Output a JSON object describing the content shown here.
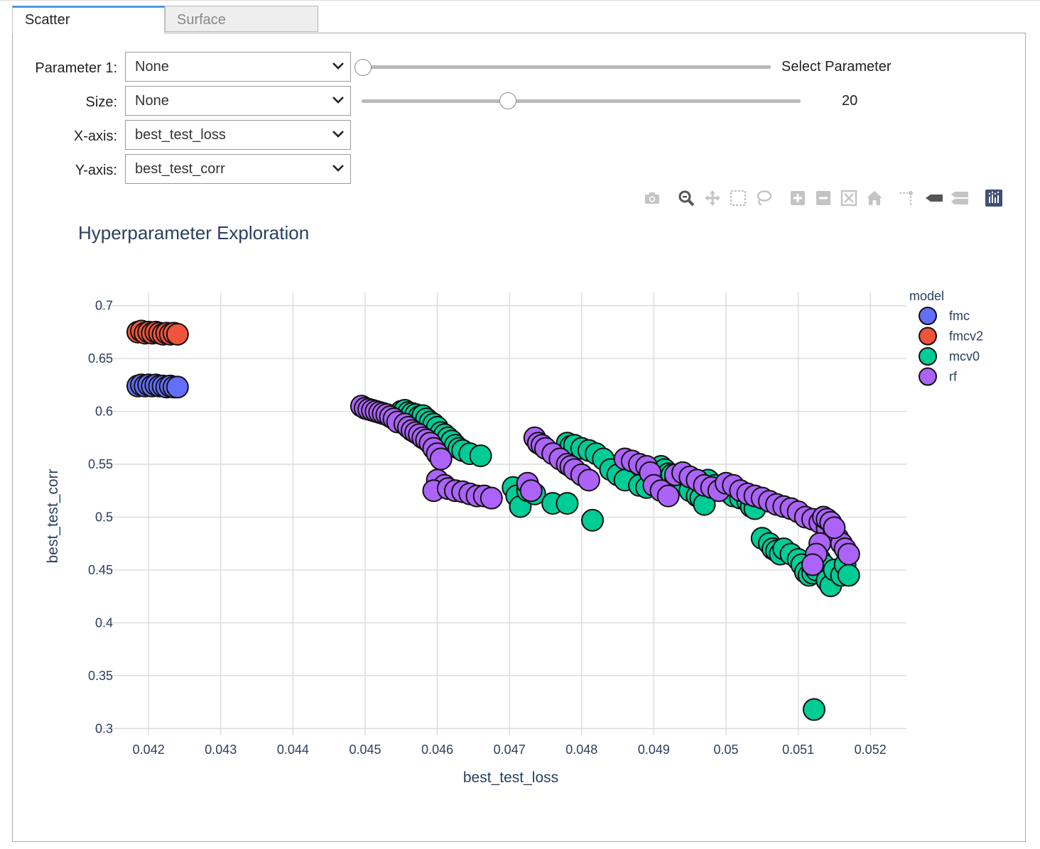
{
  "tabs": [
    {
      "label": "Scatter",
      "active": true
    },
    {
      "label": "Surface",
      "active": false
    }
  ],
  "controls": {
    "param1": {
      "label": "Parameter 1:",
      "value": "None"
    },
    "size": {
      "label": "Size:",
      "value": "None"
    },
    "xaxis": {
      "label": "X-axis:",
      "value": "best_test_loss"
    },
    "yaxis": {
      "label": "Y-axis:",
      "value": "best_test_corr"
    },
    "param_slider": {
      "value_text": "Select Parameter",
      "fraction": 0.0
    },
    "size_slider": {
      "value_text": "20",
      "value": 20,
      "min": 0,
      "max": 60
    }
  },
  "modebar": [
    "camera-icon",
    "zoom-icon",
    "pan-icon",
    "box-select-icon",
    "lasso-select-icon",
    "zoom-in-icon",
    "zoom-out-icon",
    "autoscale-icon",
    "reset-axes-icon",
    "spike-lines-icon",
    "hover-closest-icon",
    "hover-compare-icon",
    "plotly-logo-icon"
  ],
  "colors": {
    "fmc": "#636efa",
    "fmcv2": "#ef553b",
    "mcv0": "#00cc96",
    "rf": "#ab63fa",
    "accent": "#4a9ae0",
    "title": "#2a3f5f"
  },
  "chart_data": {
    "type": "scatter",
    "title": "Hyperparameter Exploration",
    "xlabel": "best_test_loss",
    "ylabel": "best_test_corr",
    "xlim": [
      0.04125,
      0.0525
    ],
    "ylim": [
      0.2935,
      0.7125
    ],
    "xticks": [
      0.042,
      0.043,
      0.044,
      0.045,
      0.046,
      0.047,
      0.048,
      0.049,
      0.05,
      0.051,
      0.052
    ],
    "xtick_labels": [
      "0.042",
      "0.043",
      "0.044",
      "0.045",
      "0.046",
      "0.047",
      "0.048",
      "0.049",
      "0.05",
      "0.051",
      "0.052"
    ],
    "yticks": [
      0.3,
      0.35,
      0.4,
      0.45,
      0.5,
      0.55,
      0.6,
      0.65,
      0.7
    ],
    "ytick_labels": [
      "0.3",
      "0.35",
      "0.4",
      "0.45",
      "0.5",
      "0.55",
      "0.6",
      "0.65",
      "0.7"
    ],
    "legend_title": "model",
    "legend_position": "top-right",
    "series": [
      {
        "name": "fmc",
        "color": "#636efa",
        "x": [
          0.04185,
          0.0419,
          0.04195,
          0.042,
          0.04205,
          0.0421,
          0.04215,
          0.0422,
          0.04225,
          0.0423,
          0.04235,
          0.0424
        ],
        "y": [
          0.624,
          0.625,
          0.624,
          0.625,
          0.624,
          0.625,
          0.624,
          0.624,
          0.623,
          0.624,
          0.623,
          0.623
        ]
      },
      {
        "name": "fmcv2",
        "color": "#ef553b",
        "x": [
          0.04185,
          0.0419,
          0.04195,
          0.042,
          0.04205,
          0.0421,
          0.04215,
          0.0422,
          0.04225,
          0.0423,
          0.04235,
          0.0424
        ],
        "y": [
          0.675,
          0.676,
          0.674,
          0.675,
          0.674,
          0.675,
          0.674,
          0.673,
          0.674,
          0.673,
          0.674,
          0.673
        ]
      },
      {
        "name": "mcv0",
        "color": "#00cc96",
        "x": [
          0.0455,
          0.04555,
          0.0456,
          0.04565,
          0.0457,
          0.04575,
          0.0458,
          0.04585,
          0.0459,
          0.04595,
          0.046,
          0.04605,
          0.0461,
          0.04615,
          0.0462,
          0.04625,
          0.0463,
          0.04635,
          0.04645,
          0.0466,
          0.04705,
          0.0471,
          0.04715,
          0.04725,
          0.04735,
          0.0476,
          0.0478,
          0.0478,
          0.04785,
          0.0479,
          0.048,
          0.0481,
          0.0482,
          0.0483,
          0.04815,
          0.0484,
          0.0485,
          0.0486,
          0.0488,
          0.0489,
          0.0491,
          0.04915,
          0.0492,
          0.04925,
          0.0493,
          0.04935,
          0.0494,
          0.0495,
          0.0496,
          0.04965,
          0.0497,
          0.04975,
          0.04985,
          0.04995,
          0.05,
          0.05005,
          0.0501,
          0.0502,
          0.0503,
          0.05035,
          0.0504,
          0.0505,
          0.0506,
          0.05065,
          0.0507,
          0.05075,
          0.0508,
          0.0509,
          0.051,
          0.05105,
          0.0511,
          0.05115,
          0.0512,
          0.05125,
          0.0513,
          0.05135,
          0.0514,
          0.05145,
          0.0515,
          0.0516,
          0.05165,
          0.0517,
          0.05122
        ],
        "y": [
          0.6,
          0.601,
          0.599,
          0.598,
          0.597,
          0.595,
          0.596,
          0.593,
          0.59,
          0.588,
          0.585,
          0.58,
          0.578,
          0.575,
          0.572,
          0.568,
          0.565,
          0.563,
          0.56,
          0.558,
          0.528,
          0.52,
          0.51,
          0.525,
          0.522,
          0.513,
          0.513,
          0.57,
          0.567,
          0.568,
          0.565,
          0.563,
          0.56,
          0.555,
          0.497,
          0.545,
          0.54,
          0.535,
          0.53,
          0.528,
          0.548,
          0.545,
          0.541,
          0.54,
          0.535,
          0.533,
          0.532,
          0.525,
          0.52,
          0.518,
          0.512,
          0.535,
          0.53,
          0.527,
          0.53,
          0.523,
          0.52,
          0.518,
          0.515,
          0.51,
          0.508,
          0.48,
          0.475,
          0.47,
          0.468,
          0.465,
          0.47,
          0.465,
          0.46,
          0.455,
          0.448,
          0.445,
          0.447,
          0.45,
          0.46,
          0.455,
          0.44,
          0.435,
          0.45,
          0.445,
          0.455,
          0.445,
          0.318
        ]
      },
      {
        "name": "rf",
        "color": "#ab63fa",
        "x": [
          0.04495,
          0.045,
          0.04505,
          0.0451,
          0.04515,
          0.0452,
          0.04525,
          0.0453,
          0.04535,
          0.0454,
          0.04545,
          0.04555,
          0.0456,
          0.04565,
          0.0457,
          0.04575,
          0.0458,
          0.04585,
          0.0459,
          0.04595,
          0.046,
          0.04605,
          0.046,
          0.0461,
          0.04595,
          0.04615,
          0.04625,
          0.04635,
          0.04645,
          0.04655,
          0.04665,
          0.04675,
          0.04725,
          0.0473,
          0.04735,
          0.0474,
          0.04745,
          0.0475,
          0.0476,
          0.0477,
          0.0478,
          0.04785,
          0.0479,
          0.048,
          0.0481,
          0.0486,
          0.0487,
          0.0488,
          0.0489,
          0.04895,
          0.049,
          0.0491,
          0.0492,
          0.0493,
          0.0494,
          0.0495,
          0.0496,
          0.0497,
          0.0498,
          0.0499,
          0.05,
          0.0501,
          0.0502,
          0.0503,
          0.0504,
          0.0505,
          0.0506,
          0.0507,
          0.0508,
          0.0509,
          0.051,
          0.0511,
          0.0512,
          0.0513,
          0.0514,
          0.0515,
          0.05155,
          0.0516,
          0.05165,
          0.0517,
          0.05135,
          0.0514,
          0.05145,
          0.0515,
          0.0513,
          0.05125,
          0.0512
        ],
        "y": [
          0.605,
          0.603,
          0.602,
          0.601,
          0.6,
          0.599,
          0.598,
          0.597,
          0.595,
          0.593,
          0.59,
          0.588,
          0.585,
          0.582,
          0.58,
          0.578,
          0.575,
          0.573,
          0.57,
          0.565,
          0.56,
          0.555,
          0.535,
          0.53,
          0.525,
          0.527,
          0.525,
          0.524,
          0.522,
          0.52,
          0.52,
          0.518,
          0.532,
          0.525,
          0.575,
          0.57,
          0.568,
          0.565,
          0.56,
          0.555,
          0.55,
          0.548,
          0.545,
          0.54,
          0.535,
          0.555,
          0.553,
          0.55,
          0.548,
          0.542,
          0.53,
          0.525,
          0.52,
          0.54,
          0.542,
          0.538,
          0.535,
          0.53,
          0.528,
          0.525,
          0.532,
          0.53,
          0.525,
          0.522,
          0.52,
          0.518,
          0.515,
          0.512,
          0.51,
          0.508,
          0.505,
          0.5,
          0.498,
          0.495,
          0.49,
          0.485,
          0.48,
          0.475,
          0.47,
          0.465,
          0.5,
          0.498,
          0.495,
          0.49,
          0.475,
          0.465,
          0.455
        ]
      }
    ]
  }
}
